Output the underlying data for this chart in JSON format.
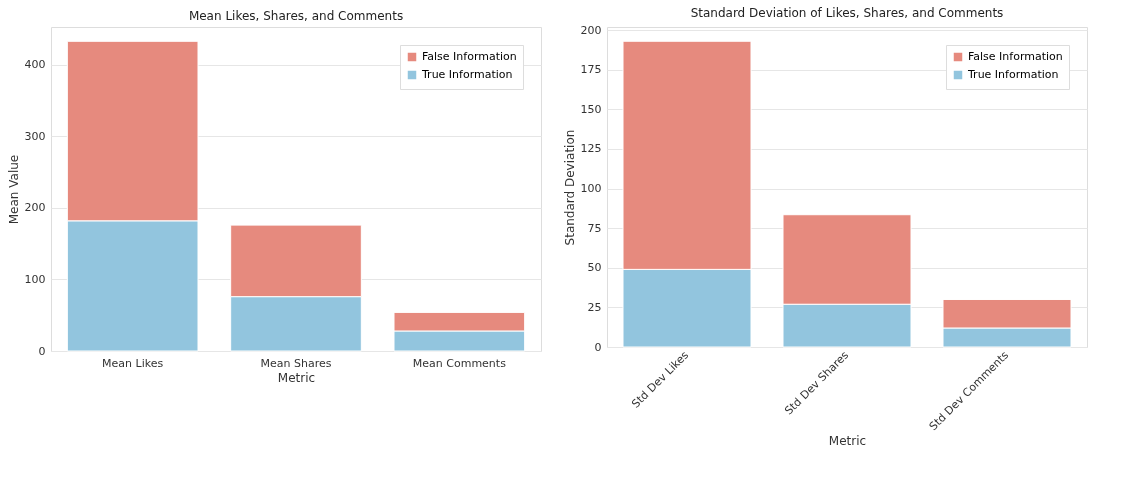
{
  "chart_data": [
    {
      "type": "bar",
      "title": "Mean Likes, Shares, and Comments",
      "xlabel": "Metric",
      "ylabel": "Mean Value",
      "categories": [
        "Mean Likes",
        "Mean Shares",
        "Mean Comments"
      ],
      "stacked": true,
      "series": [
        {
          "name": "True Information",
          "color": "#92c5de",
          "values": [
            182,
            76,
            28
          ]
        },
        {
          "name": "False Information",
          "color": "#e68a7e",
          "values": [
            251,
            100,
            26
          ]
        }
      ],
      "ylim": [
        0,
        453
      ],
      "yticks": [
        0,
        100,
        200,
        300,
        400
      ],
      "grid": "y",
      "legend": "top right"
    },
    {
      "type": "bar",
      "title": "Standard Deviation of Likes, Shares, and Comments",
      "xlabel": "Metric",
      "ylabel": "Standard Deviation",
      "categories": [
        "Std Dev Likes",
        "Std Dev Shares",
        "Std Dev Comments"
      ],
      "stacked": true,
      "series": [
        {
          "name": "True Information",
          "color": "#92c5de",
          "values": [
            49,
            27,
            12
          ]
        },
        {
          "name": "False Information",
          "color": "#e68a7e",
          "values": [
            144,
            56.5,
            18
          ]
        }
      ],
      "ylim": [
        0,
        202
      ],
      "yticks": [
        0,
        25,
        50,
        75,
        100,
        125,
        150,
        175,
        200
      ],
      "grid": "y",
      "legend": "top right"
    }
  ]
}
